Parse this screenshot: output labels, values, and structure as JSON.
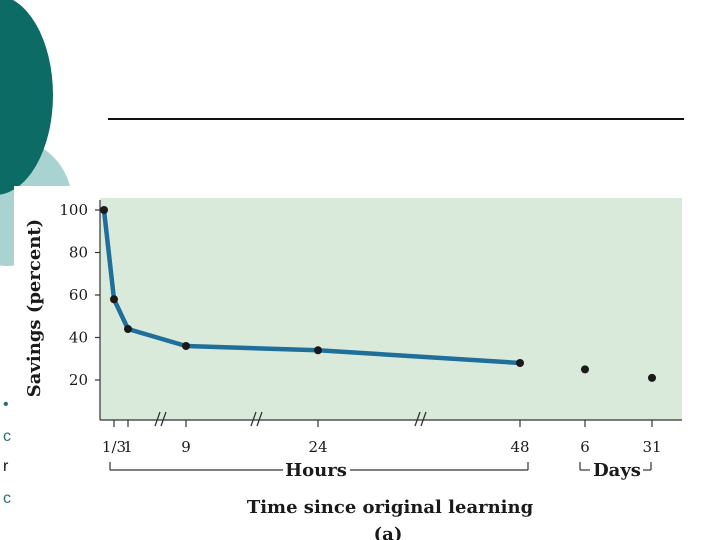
{
  "colors": {
    "panel": "#d9eadb",
    "line": "#1f6f9a",
    "point": "#1a1a1a",
    "deco_dark": "#0d6b66",
    "deco_light": "#a9d3d1"
  },
  "fragments": {
    "a": "•",
    "b": "c",
    "c": "r",
    "d": "c",
    "e": "."
  },
  "chart_data": {
    "type": "line",
    "ylabel": "Savings (percent)",
    "xlabel": "Time since original learning",
    "panel_label": "(a)",
    "y_ticks": [
      20,
      40,
      60,
      80,
      100
    ],
    "x_tick_labels": [
      "1/3",
      "1",
      "9",
      "24",
      "48",
      "6",
      "31"
    ],
    "group_labels": {
      "hours": "Hours",
      "days": "Days"
    },
    "series": [
      {
        "points": [
          {
            "x": "0",
            "y": 100
          },
          {
            "x": "1/3",
            "y": 58
          },
          {
            "x": "1",
            "y": 44
          },
          {
            "x": "9",
            "y": 36
          },
          {
            "x": "24",
            "y": 34
          },
          {
            "x": "48",
            "y": 28
          }
        ]
      }
    ],
    "extra_points": [
      {
        "x": "6 days",
        "y": 25
      },
      {
        "x": "31 days",
        "y": 21
      }
    ],
    "ylim": [
      10,
      110
    ]
  }
}
